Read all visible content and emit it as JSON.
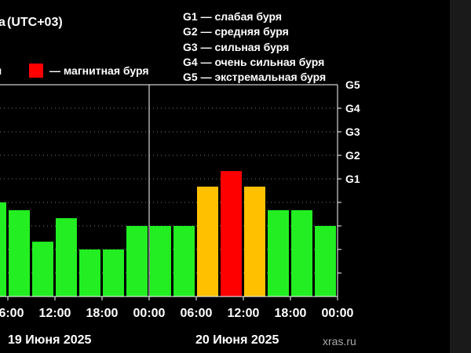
{
  "timezone_label": "(UTC+03)",
  "timezone_prefix": "а",
  "level_legend": [
    "G1 — слабая буря",
    "G2 — средняя буря",
    "G3 — сильная буря",
    "G4 — очень сильная буря",
    "G5 — экстремальная буря"
  ],
  "storm_legend": {
    "left_fragment": "я",
    "label": "— магнитная буря",
    "color": "#ff0000"
  },
  "watermark": "xras.ru",
  "chart_data": {
    "type": "bar",
    "days": [
      "19 Июня 2025",
      "20 Июня 2025"
    ],
    "x_tick_labels": [
      "06:00",
      "12:00",
      "18:00",
      "00:00",
      "06:00",
      "12:00",
      "18:00",
      "00:00"
    ],
    "y_level_labels": [
      "G1",
      "G2",
      "G3",
      "G4",
      "G5"
    ],
    "ylim": [
      0,
      9
    ],
    "values": [
      4,
      3.67,
      2.33,
      3.33,
      2,
      2,
      3,
      3,
      3,
      4.67,
      5.33,
      4.67,
      3.67,
      3.67,
      3
    ],
    "colors": [
      "#22ee22",
      "#22ee22",
      "#22ee22",
      "#22ee22",
      "#22ee22",
      "#22ee22",
      "#22ee22",
      "#22ee22",
      "#22ee22",
      "#ffc000",
      "#ff0000",
      "#ffc000",
      "#22ee22",
      "#22ee22",
      "#22ee22"
    ]
  }
}
